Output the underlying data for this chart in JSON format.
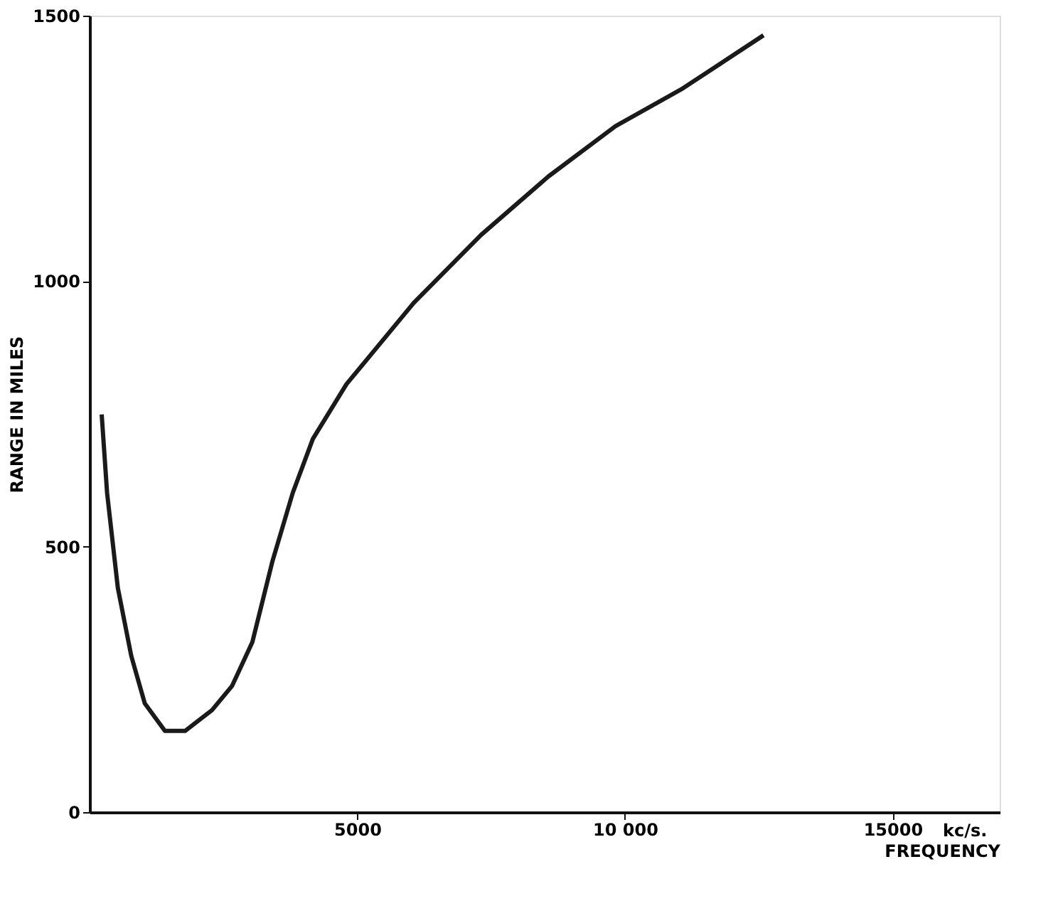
{
  "chart_data": {
    "type": "line",
    "xlabel": "FREQUENCY",
    "ylabel": "RANGE IN MILES",
    "annotations": [
      "kc/s."
    ],
    "x": [
      226,
      327,
      528,
      779,
      1030,
      1407,
      1784,
      2286,
      2663,
      3040,
      3417,
      3794,
      4171,
      4799,
      6055,
      7312,
      8568,
      9824,
      11080,
      12588
    ],
    "series": [
      {
        "color": "#1a1a1a",
        "values": [
          749,
          601,
          422,
          294,
          205,
          153,
          153,
          192,
          238,
          320,
          473,
          601,
          703,
          806,
          959,
          1087,
          1197,
          1292,
          1363,
          1463
        ]
      }
    ],
    "xlim": [
      0,
      17000
    ],
    "ylim": [
      0,
      1500
    ],
    "xticks": [
      5000,
      {
        "value": 10000,
        "label": "10 000"
      },
      15000
    ],
    "yticks": [
      0,
      500,
      1000,
      1500
    ],
    "grid": false,
    "legend": false,
    "marker": "none",
    "line_style": "solid"
  }
}
